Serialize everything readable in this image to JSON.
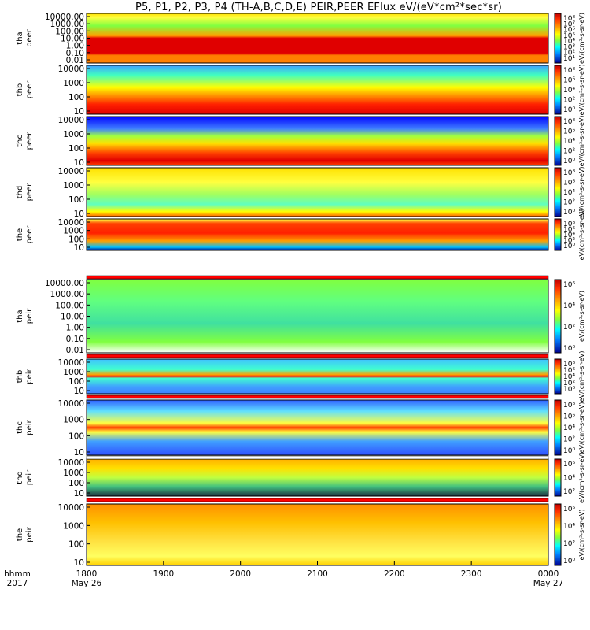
{
  "chart_data": {
    "type": "heatmap",
    "title": "P5, P1, P2, P3, P4 (TH-A,B,C,D,E) PEIR,PEER EFlux eV/(eV*cm²*sec*sr)",
    "panels": [
      {
        "label": "tha peer",
        "yticks": [
          "10000.00",
          "1000.00",
          "100.00",
          "10.00",
          "1.00",
          "0.10",
          "0.01"
        ],
        "cbar_ticks": [
          "10⁸",
          "10⁷",
          "10⁶",
          "10⁵",
          "10⁴",
          "10³",
          "10²",
          "10¹"
        ]
      },
      {
        "label": "thb peer",
        "yticks": [
          "10000",
          "1000",
          "100",
          "10"
        ],
        "cbar_ticks": [
          "10⁸",
          "10⁶",
          "10⁴",
          "10²",
          "10⁰"
        ]
      },
      {
        "label": "thc peer",
        "yticks": [
          "10000",
          "1000",
          "100",
          "10"
        ],
        "cbar_ticks": [
          "10⁸",
          "10⁶",
          "10⁴",
          "10²",
          "10⁰"
        ]
      },
      {
        "label": "thd peer",
        "yticks": [
          "10000",
          "1000",
          "100",
          "10"
        ],
        "cbar_ticks": [
          "10⁸",
          "10⁶",
          "10⁴",
          "10²",
          "10⁰"
        ]
      },
      {
        "label": "the peer",
        "yticks": [
          "10000",
          "1000",
          "100",
          "10"
        ],
        "cbar_ticks": [
          "10⁸",
          "10⁶",
          "10⁴",
          "10²",
          "10⁰"
        ]
      },
      {
        "label": "tha peir",
        "yticks": [
          "10000.00",
          "1000.00",
          "100.00",
          "10.00",
          "1.00",
          "0.10",
          "0.01"
        ],
        "cbar_ticks": [
          "10⁶",
          "10⁴",
          "10²",
          "10⁰"
        ]
      },
      {
        "label": "thb peir",
        "yticks": [
          "10000",
          "1000",
          "100",
          "10"
        ],
        "cbar_ticks": [
          "10⁸",
          "10⁶",
          "10⁴",
          "10²",
          "10⁰"
        ]
      },
      {
        "label": "thc peir",
        "yticks": [
          "10000",
          "1000",
          "100",
          "10"
        ],
        "cbar_ticks": [
          "10⁸",
          "10⁶",
          "10⁴",
          "10²",
          "10⁰"
        ]
      },
      {
        "label": "thd peir",
        "yticks": [
          "10000",
          "1000",
          "100",
          "10"
        ],
        "cbar_ticks": [
          "10⁶",
          "10⁴",
          "10²"
        ]
      },
      {
        "label": "the peir",
        "yticks": [
          "10000",
          "1000",
          "100",
          "10"
        ],
        "cbar_ticks": [
          "10⁶",
          "10⁴",
          "10²",
          "10⁰"
        ]
      }
    ],
    "cbar_label": "eV/(cm²-s-sr-eV)",
    "xaxis": {
      "corner_labels": [
        "hhmm",
        "2017"
      ],
      "ticks": [
        {
          "top": "1800",
          "bottom": "May 26"
        },
        {
          "top": "1900",
          "bottom": ""
        },
        {
          "top": "2000",
          "bottom": ""
        },
        {
          "top": "2100",
          "bottom": ""
        },
        {
          "top": "2200",
          "bottom": ""
        },
        {
          "top": "2300",
          "bottom": ""
        },
        {
          "top": "0000",
          "bottom": "May 27"
        }
      ]
    },
    "colormap": [
      "#000080",
      "#0000ff",
      "#0080ff",
      "#00ffff",
      "#00ff80",
      "#80ff00",
      "#ffff00",
      "#ffb000",
      "#ff6000",
      "#ff0000",
      "#c00000"
    ]
  }
}
